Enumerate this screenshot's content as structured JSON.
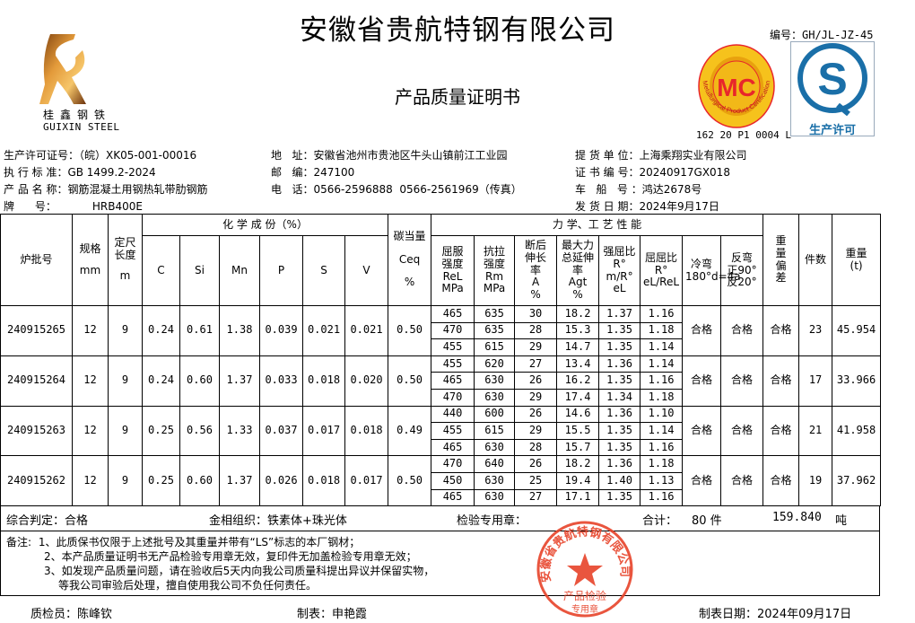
{
  "header": {
    "company": "安徽省贵航特钢有限公司",
    "doc_title": "产品质量证明书",
    "doc_number": "编号：GH/JL-JZ-45",
    "logo_cn": "桂鑫钢铁",
    "logo_en": "GUIXIN STEEL",
    "mc_logo_text": "MC",
    "mc_ring_text": "Metallurgical Product Certification",
    "mc_code": "162 20 P1 0004 L",
    "qs_text": "生产许可",
    "accent_red": "#e8262b",
    "qs_blue": "#1a6fa8"
  },
  "info": {
    "license_label": "生产许可证号：",
    "license": "（皖）XK05-001-00016",
    "standard_label": "执 行 标 准：",
    "standard": "GB 1499.2-2024",
    "product_label": "产 品 名 称：",
    "product": "钢筋混凝土用钢热轧带肋钢筋",
    "grade_label": "牌      号：",
    "grade": "HRB400E",
    "address_label": "地   址：",
    "address": "安徽省池州市贵池区牛头山镇前江工业园",
    "postcode_label": "邮   编：",
    "postcode": "247100",
    "phone_label": "电   话：",
    "phone": "0566-2596888  0566-2561969（传真）",
    "consignee_label": "提 货 单 位：",
    "consignee": "上海乘翔实业有限公司",
    "cert_no_label": "证 书 编 号：",
    "cert_no": "20240917GX018",
    "vehicle_label": "车   船   号 ：",
    "vehicle": "鸿达2678号",
    "ship_date_label": "发 货 日 期：",
    "ship_date": "2024年9月17日"
  },
  "table": {
    "headers": {
      "batch": "炉批号",
      "spec": "规格",
      "spec_unit": "mm",
      "length": "定尺长度",
      "length_unit": "m",
      "chem": "化 学 成 份（%）",
      "C": "C",
      "Si": "Si",
      "Mn": "Mn",
      "P": "P",
      "S": "S",
      "V": "V",
      "ceq": "碳当量",
      "ceq_sym": "Ceq",
      "ceq_unit": "%",
      "mech": "力 学、工 艺 性 能",
      "yield": "屈服强度",
      "yield_sym": "ReL",
      "yield_unit": "MPa",
      "tensile": "抗拉强度",
      "tensile_sym": "Rm",
      "tensile_unit": "MPa",
      "elong": "断后伸长率",
      "elong_sym": "A",
      "elong_unit": "%",
      "agt": "最大力总延伸率",
      "agt_sym": "Agt",
      "agt_unit": "%",
      "ratio1": "强屈比",
      "ratio1_sym": "R° m/R° eL",
      "ratio2": "屈屈比",
      "ratio2_sym": "R° eL/ReL",
      "cold": "冷弯",
      "cold_sym": "180°d=4a",
      "rebend": "反弯",
      "rebend_sym": "正90°反20°",
      "dev": "重量偏差",
      "pieces": "件数",
      "weight": "重量",
      "weight_unit": "(t)"
    },
    "rows": [
      {
        "batch": "240915265",
        "spec": "12",
        "length": "9",
        "C": "0.24",
        "Si": "0.61",
        "Mn": "1.38",
        "P": "0.039",
        "S": "0.021",
        "V": "0.021",
        "ceq": "0.50",
        "mech": [
          [
            "465",
            "635",
            "30",
            "18.2",
            "1.37",
            "1.16"
          ],
          [
            "470",
            "635",
            "28",
            "15.3",
            "1.35",
            "1.18"
          ],
          [
            "455",
            "615",
            "29",
            "14.7",
            "1.35",
            "1.14"
          ]
        ],
        "cold": "合格",
        "rebend": "合格",
        "dev": "合格",
        "pieces": "23",
        "weight": "45.954"
      },
      {
        "batch": "240915264",
        "spec": "12",
        "length": "9",
        "C": "0.24",
        "Si": "0.60",
        "Mn": "1.37",
        "P": "0.033",
        "S": "0.018",
        "V": "0.020",
        "ceq": "0.50",
        "mech": [
          [
            "455",
            "620",
            "27",
            "13.4",
            "1.36",
            "1.14"
          ],
          [
            "465",
            "630",
            "26",
            "16.2",
            "1.35",
            "1.16"
          ],
          [
            "470",
            "630",
            "29",
            "17.4",
            "1.34",
            "1.18"
          ]
        ],
        "cold": "合格",
        "rebend": "合格",
        "dev": "合格",
        "pieces": "17",
        "weight": "33.966"
      },
      {
        "batch": "240915263",
        "spec": "12",
        "length": "9",
        "C": "0.25",
        "Si": "0.56",
        "Mn": "1.33",
        "P": "0.037",
        "S": "0.017",
        "V": "0.018",
        "ceq": "0.49",
        "mech": [
          [
            "440",
            "600",
            "26",
            "14.6",
            "1.36",
            "1.10"
          ],
          [
            "455",
            "615",
            "29",
            "15.5",
            "1.35",
            "1.14"
          ],
          [
            "465",
            "630",
            "28",
            "15.7",
            "1.35",
            "1.16"
          ]
        ],
        "cold": "合格",
        "rebend": "合格",
        "dev": "合格",
        "pieces": "21",
        "weight": "41.958"
      },
      {
        "batch": "240915262",
        "spec": "12",
        "length": "9",
        "C": "0.25",
        "Si": "0.60",
        "Mn": "1.37",
        "P": "0.026",
        "S": "0.018",
        "V": "0.017",
        "ceq": "0.50",
        "mech": [
          [
            "470",
            "640",
            "26",
            "18.2",
            "1.36",
            "1.18"
          ],
          [
            "450",
            "630",
            "25",
            "19.4",
            "1.40",
            "1.13"
          ],
          [
            "465",
            "630",
            "27",
            "17.1",
            "1.35",
            "1.16"
          ]
        ],
        "cold": "合格",
        "rebend": "合格",
        "dev": "合格",
        "pieces": "19",
        "weight": "37.962"
      }
    ]
  },
  "summary": {
    "verdict": "综合判定：合格",
    "structure": "金相组织：铁素体+珠光体",
    "seal_label": "检验专用章：",
    "total_label": "合计：",
    "total_pieces": "80 件",
    "total_weight": "159.840",
    "weight_unit": "吨"
  },
  "notes": {
    "label": "备注:",
    "items": [
      "1、此质保书仅限于上述批号及其重量并带有“LS”标志的本厂钢材；",
      "2、本产品质量证明书无产品检验专用章无效，复印件无加盖检验专用章无效；",
      "3、如发现产品质量问题，请在验收后5天内向我公司质量科提出异议并保留实物，",
      "等我公司审验后处理，擅自使用我公司不负任何责任。"
    ]
  },
  "stamp": {
    "ring_text": "安徽省贵航特钢有限公司",
    "line1": "产品检验",
    "line2": "专用章",
    "color": "#e8472e"
  },
  "footer": {
    "inspector": "质检员：陈峰钦",
    "tabulator": "制表：申艳霞",
    "date": "制表日期：2024年09月17日"
  }
}
